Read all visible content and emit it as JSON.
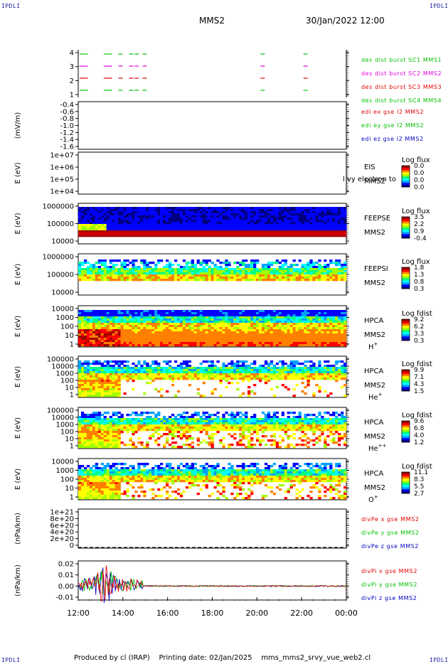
{
  "header": {
    "corner_label": "IPDLI",
    "title": "MMS2",
    "date": "30/Jan/2022 12:00"
  },
  "footer": {
    "produced_by": "Produced by cl (IRAP)",
    "printing_date": "Printing date: 02/Jan/2025",
    "filename": "mms_mms2_srvy_vue_web2.cl"
  },
  "colorbar_colors": [
    "#000080",
    "#0000ff",
    "#00a0ff",
    "#00ffff",
    "#00ff80",
    "#a0ff00",
    "#ffff00",
    "#ff8000",
    "#ff0000",
    "#a00000"
  ],
  "chart_data": [
    {
      "type": "scatter",
      "id": "burst",
      "ytick_labels": [
        "4",
        "3",
        "2",
        "1"
      ],
      "ylim": [
        0.5,
        4.5
      ],
      "series": [
        {
          "name": "des dist burst SC1 MMS1",
          "color": "#00c000",
          "y": 4
        },
        {
          "name": "des dist burst SC2 MMS2",
          "color": "#e000e0",
          "y": 3
        },
        {
          "name": "des dist burst SC3 MMS3",
          "color": "#e00000",
          "y": 2
        },
        {
          "name": "des dist burst SC4 MMS4",
          "color": "#00c000",
          "y": 1
        }
      ]
    },
    {
      "type": "line",
      "id": "edi",
      "ylabel": "(mV/m)",
      "ytick_labels": [
        "-0.4",
        "-0.6",
        "-0.8",
        "-1.0",
        "-1.2",
        "-1.4",
        "-1.6"
      ],
      "ylim": [
        -1.6,
        -0.4
      ],
      "series": [
        {
          "name": "edi ex gse l2 MMS2",
          "color": "#e00000"
        },
        {
          "name": "edi ey gse l2 MMS2",
          "color": "#00c000"
        },
        {
          "name": "edi ez gse l2 MMS2",
          "color": "#0000c0"
        }
      ]
    },
    {
      "type": "heatmap",
      "id": "eis",
      "ylabel": "E (eV)",
      "ytick_labels": [
        "1e+07",
        "1e+06",
        "1e+05",
        "1e+04"
      ],
      "ylim": [
        10000,
        10000000
      ],
      "instrument": "EIS",
      "sc": "MMS2",
      "note": "l vy electron to",
      "cb_title": "Log flux",
      "cb_ticks": [
        "0.0",
        "0.0",
        "0.0",
        "0.0"
      ]
    },
    {
      "type": "heatmap",
      "id": "feepse",
      "ylabel": "E (eV)",
      "ytick_labels": [
        "1000000",
        "100000",
        "10000"
      ],
      "ylim": [
        10000,
        1000000
      ],
      "instrument": "FEEPSE",
      "sc": "MMS2",
      "cb_title": "Log flux",
      "cb_ticks": [
        "3.5",
        "2.2",
        "0.9",
        "-0.4"
      ]
    },
    {
      "type": "heatmap",
      "id": "feepsi",
      "ylabel": "E (eV)",
      "ytick_labels": [
        "1000000",
        "100000",
        "10000"
      ],
      "ylim": [
        10000,
        1000000
      ],
      "instrument": "FEEPSI",
      "sc": "MMS2",
      "cb_title": "Log flux",
      "cb_ticks": [
        "1.8",
        "1.3",
        "0.8",
        "0.3"
      ]
    },
    {
      "type": "heatmap",
      "id": "hpca_h",
      "ylabel": "E (eV)",
      "ytick_labels": [
        "10000",
        "1000",
        "100",
        "10",
        "1"
      ],
      "ylim": [
        1,
        40000
      ],
      "instrument": "HPCA",
      "sc": "MMS2",
      "species": "H",
      "species_sup": "+",
      "cb_title": "Log fdist",
      "cb_ticks": [
        "9.2",
        "6.2",
        "3.3",
        "0.3"
      ]
    },
    {
      "type": "heatmap",
      "id": "hpca_he",
      "ylabel": "E (eV)",
      "ytick_labels": [
        "100000",
        "10000",
        "1000",
        "100",
        "10",
        "1"
      ],
      "ylim": [
        1,
        100000
      ],
      "instrument": "HPCA",
      "sc": "MMS2",
      "species": "He",
      "species_sup": "+",
      "cb_title": "Log fdist",
      "cb_ticks": [
        "9.9",
        "7.1",
        "4.3",
        "1.5"
      ]
    },
    {
      "type": "heatmap",
      "id": "hpca_hepp",
      "ylabel": "E (eV)",
      "ytick_labels": [
        "100000",
        "10000",
        "1000",
        "100",
        "10",
        "1"
      ],
      "ylim": [
        1,
        100000
      ],
      "instrument": "HPCA",
      "sc": "MMS2",
      "species": "He",
      "species_sup": "++",
      "cb_title": "Log fdist",
      "cb_ticks": [
        "9.6",
        "6.8",
        "4.0",
        "1.2"
      ]
    },
    {
      "type": "heatmap",
      "id": "hpca_o",
      "ylabel": "E (eV)",
      "ytick_labels": [
        "10000",
        "1000",
        "100",
        "10",
        "1"
      ],
      "ylim": [
        1,
        40000
      ],
      "instrument": "HPCA",
      "sc": "MMS2",
      "species": "O",
      "species_sup": "+",
      "cb_title": "Log fdist",
      "cb_ticks": [
        "11.1",
        "8.3",
        "5.5",
        "2.7"
      ]
    },
    {
      "type": "line",
      "id": "divpe",
      "ylabel": "(nPa/km)",
      "ytick_labels": [
        "1e+21",
        "8e+20",
        "6e+20",
        "4e+20",
        "2e+20",
        "0"
      ],
      "ylim": [
        0,
        1e+21
      ],
      "series": [
        {
          "name": "divPe x gse MMS2",
          "color": "#e00000"
        },
        {
          "name": "divPe y gse MMS2",
          "color": "#00c000"
        },
        {
          "name": "divPe z gse MMS2",
          "color": "#0000c0"
        }
      ]
    },
    {
      "type": "line",
      "id": "divpi",
      "ylabel": "(nPa/km)",
      "ytick_labels": [
        "0.02",
        "0.01",
        "0.00",
        "-0.01"
      ],
      "ylim": [
        -0.015,
        0.025
      ],
      "series": [
        {
          "name": "divPi x gse MMS2",
          "color": "#e00000"
        },
        {
          "name": "divPi y gse MMS2",
          "color": "#00c000"
        },
        {
          "name": "divPi z gse MMS2",
          "color": "#0000c0"
        }
      ]
    }
  ],
  "xaxis": {
    "tick_labels": [
      "12:00",
      "14:00",
      "16:00",
      "18:00",
      "20:00",
      "22:00",
      "00:00"
    ]
  }
}
